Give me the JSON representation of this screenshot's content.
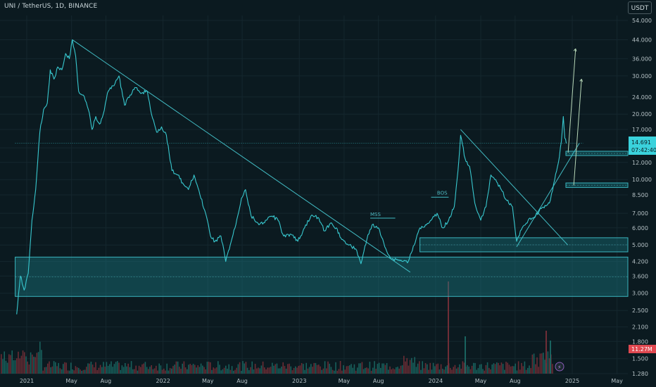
{
  "header": {
    "symbol_title": "UNI / TetherUS, 1D, BINANCE",
    "currency_button": "USDT"
  },
  "price_badge": {
    "price": "14.691",
    "countdown": "07:42:40"
  },
  "volume_badge": {
    "value": "11.27M"
  },
  "colors": {
    "background": "#0b1a20",
    "price_line": "#38c8cf",
    "zone_fill": "#1b7c86",
    "trendline": "#42bcc4",
    "arrow": "#b8d8b8",
    "volume_up": "#1b6c66",
    "volume_down": "#7a3038",
    "badge_price": "#3ad2dc",
    "badge_volume": "#e04850"
  },
  "chart_data": {
    "type": "line",
    "title": "UNI / TetherUS, 1D, BINANCE",
    "y_scale": "log",
    "ylim": [
      1.25,
      62
    ],
    "x_tick_labels": [
      "2021",
      "May",
      "Aug",
      "2022",
      "May",
      "Aug",
      "2023",
      "May",
      "Aug",
      "2024",
      "May",
      "Aug",
      "2025",
      "May"
    ],
    "x_tick_dates": [
      "2021-01-01",
      "2021-05-01",
      "2021-08-01",
      "2022-01-01",
      "2022-05-01",
      "2022-08-01",
      "2023-01-01",
      "2023-05-01",
      "2023-08-01",
      "2024-01-01",
      "2024-05-01",
      "2024-08-01",
      "2025-01-01",
      "2025-05-01"
    ],
    "y_tick_labels": [
      "54.000",
      "44.000",
      "36.000",
      "30.000",
      "24.000",
      "20.000",
      "17.000",
      "14.000",
      "12.000",
      "10.000",
      "8.500",
      "7.000",
      "6.000",
      "5.000",
      "4.200",
      "3.600",
      "3.000",
      "2.500",
      "2.100",
      "1.800",
      "1.500",
      "1.280"
    ],
    "y_tick_values": [
      54,
      44,
      36,
      30,
      24,
      20,
      17,
      14,
      12,
      10,
      8.5,
      7,
      6,
      5,
      4.2,
      3.6,
      3,
      2.5,
      2.1,
      1.8,
      1.5,
      1.28
    ],
    "series": [
      {
        "values": [
          {
            "x": "2020-12-05",
            "y": 2.4
          },
          {
            "x": "2020-12-15",
            "y": 3.6
          },
          {
            "x": "2020-12-25",
            "y": 3.1
          },
          {
            "x": "2021-01-05",
            "y": 3.7
          },
          {
            "x": "2021-01-15",
            "y": 6.5
          },
          {
            "x": "2021-01-25",
            "y": 9.0
          },
          {
            "x": "2021-02-05",
            "y": 16.5
          },
          {
            "x": "2021-02-15",
            "y": 21.0
          },
          {
            "x": "2021-02-25",
            "y": 22.5
          },
          {
            "x": "2021-03-05",
            "y": 32.0
          },
          {
            "x": "2021-03-15",
            "y": 29.0
          },
          {
            "x": "2021-03-25",
            "y": 33.0
          },
          {
            "x": "2021-04-05",
            "y": 32.0
          },
          {
            "x": "2021-04-15",
            "y": 38.0
          },
          {
            "x": "2021-04-25",
            "y": 36.0
          },
          {
            "x": "2021-05-03",
            "y": 44.0
          },
          {
            "x": "2021-05-12",
            "y": 37.0
          },
          {
            "x": "2021-05-20",
            "y": 25.5
          },
          {
            "x": "2021-06-01",
            "y": 24.5
          },
          {
            "x": "2021-06-15",
            "y": 21.0
          },
          {
            "x": "2021-06-25",
            "y": 17.0
          },
          {
            "x": "2021-07-05",
            "y": 19.5
          },
          {
            "x": "2021-07-15",
            "y": 18.0
          },
          {
            "x": "2021-07-25",
            "y": 20.0
          },
          {
            "x": "2021-08-05",
            "y": 25.0
          },
          {
            "x": "2021-08-20",
            "y": 27.0
          },
          {
            "x": "2021-09-05",
            "y": 30.0
          },
          {
            "x": "2021-09-20",
            "y": 22.0
          },
          {
            "x": "2021-10-05",
            "y": 24.5
          },
          {
            "x": "2021-10-20",
            "y": 26.5
          },
          {
            "x": "2021-11-05",
            "y": 25.0
          },
          {
            "x": "2021-11-20",
            "y": 25.5
          },
          {
            "x": "2021-12-01",
            "y": 20.0
          },
          {
            "x": "2021-12-15",
            "y": 16.5
          },
          {
            "x": "2021-12-28",
            "y": 17.5
          },
          {
            "x": "2022-01-10",
            "y": 16.0
          },
          {
            "x": "2022-01-25",
            "y": 11.0
          },
          {
            "x": "2022-02-10",
            "y": 10.5
          },
          {
            "x": "2022-02-25",
            "y": 9.5
          },
          {
            "x": "2022-03-10",
            "y": 9.0
          },
          {
            "x": "2022-03-25",
            "y": 10.5
          },
          {
            "x": "2022-04-10",
            "y": 8.5
          },
          {
            "x": "2022-04-25",
            "y": 7.0
          },
          {
            "x": "2022-05-08",
            "y": 5.5
          },
          {
            "x": "2022-05-20",
            "y": 5.2
          },
          {
            "x": "2022-06-05",
            "y": 5.5
          },
          {
            "x": "2022-06-18",
            "y": 4.2
          },
          {
            "x": "2022-06-30",
            "y": 5.0
          },
          {
            "x": "2022-07-15",
            "y": 6.2
          },
          {
            "x": "2022-07-30",
            "y": 8.2
          },
          {
            "x": "2022-08-10",
            "y": 9.0
          },
          {
            "x": "2022-08-25",
            "y": 6.8
          },
          {
            "x": "2022-09-15",
            "y": 6.2
          },
          {
            "x": "2022-10-05",
            "y": 6.5
          },
          {
            "x": "2022-10-20",
            "y": 6.8
          },
          {
            "x": "2022-11-05",
            "y": 6.5
          },
          {
            "x": "2022-11-20",
            "y": 5.5
          },
          {
            "x": "2022-12-10",
            "y": 5.6
          },
          {
            "x": "2022-12-28",
            "y": 5.2
          },
          {
            "x": "2023-01-15",
            "y": 6.0
          },
          {
            "x": "2023-02-01",
            "y": 6.8
          },
          {
            "x": "2023-02-20",
            "y": 6.7
          },
          {
            "x": "2023-03-10",
            "y": 5.8
          },
          {
            "x": "2023-03-25",
            "y": 6.3
          },
          {
            "x": "2023-04-10",
            "y": 6.0
          },
          {
            "x": "2023-04-25",
            "y": 5.3
          },
          {
            "x": "2023-05-15",
            "y": 5.0
          },
          {
            "x": "2023-06-01",
            "y": 4.8
          },
          {
            "x": "2023-06-15",
            "y": 4.1
          },
          {
            "x": "2023-07-01",
            "y": 5.3
          },
          {
            "x": "2023-07-15",
            "y": 6.2
          },
          {
            "x": "2023-08-01",
            "y": 6.0
          },
          {
            "x": "2023-08-18",
            "y": 4.9
          },
          {
            "x": "2023-09-05",
            "y": 4.3
          },
          {
            "x": "2023-09-20",
            "y": 4.3
          },
          {
            "x": "2023-10-05",
            "y": 4.2
          },
          {
            "x": "2023-10-20",
            "y": 4.2
          },
          {
            "x": "2023-11-05",
            "y": 5.0
          },
          {
            "x": "2023-11-20",
            "y": 6.0
          },
          {
            "x": "2023-12-05",
            "y": 6.2
          },
          {
            "x": "2023-12-20",
            "y": 6.5
          },
          {
            "x": "2024-01-05",
            "y": 7.0
          },
          {
            "x": "2024-01-20",
            "y": 6.0
          },
          {
            "x": "2024-02-05",
            "y": 6.5
          },
          {
            "x": "2024-02-20",
            "y": 7.5
          },
          {
            "x": "2024-03-01",
            "y": 11.0
          },
          {
            "x": "2024-03-08",
            "y": 16.0
          },
          {
            "x": "2024-03-20",
            "y": 12.5
          },
          {
            "x": "2024-04-01",
            "y": 11.5
          },
          {
            "x": "2024-04-15",
            "y": 7.8
          },
          {
            "x": "2024-05-01",
            "y": 6.5
          },
          {
            "x": "2024-05-15",
            "y": 7.5
          },
          {
            "x": "2024-05-28",
            "y": 10.5
          },
          {
            "x": "2024-06-10",
            "y": 10.0
          },
          {
            "x": "2024-06-25",
            "y": 9.0
          },
          {
            "x": "2024-07-10",
            "y": 8.0
          },
          {
            "x": "2024-07-25",
            "y": 7.5
          },
          {
            "x": "2024-08-05",
            "y": 5.2
          },
          {
            "x": "2024-08-20",
            "y": 6.0
          },
          {
            "x": "2024-09-05",
            "y": 6.5
          },
          {
            "x": "2024-09-20",
            "y": 6.7
          },
          {
            "x": "2024-10-05",
            "y": 7.2
          },
          {
            "x": "2024-10-20",
            "y": 7.6
          },
          {
            "x": "2024-11-01",
            "y": 7.8
          },
          {
            "x": "2024-11-15",
            "y": 10.0
          },
          {
            "x": "2024-11-25",
            "y": 12.0
          },
          {
            "x": "2024-12-03",
            "y": 15.0
          },
          {
            "x": "2024-12-08",
            "y": 19.5
          },
          {
            "x": "2024-12-12",
            "y": 15.5
          },
          {
            "x": "2024-12-16",
            "y": 14.69
          }
        ]
      }
    ],
    "zones": [
      {
        "x_start": "2020-12-01",
        "y_low": 2.9,
        "y_high": 4.4
      },
      {
        "x_start": "2023-11-20",
        "y_low": 4.65,
        "y_high": 5.4
      },
      {
        "x_start": "2024-12-15",
        "y_low": 9.2,
        "y_high": 9.65
      },
      {
        "x_start": "2024-12-15",
        "y_low": 12.9,
        "y_high": 13.5
      }
    ],
    "annotations": [
      {
        "text": "MSS",
        "x": "2023-07-25",
        "y": 6.65
      },
      {
        "text": "BOS",
        "x": "2024-01-20",
        "y": 8.35
      }
    ]
  }
}
